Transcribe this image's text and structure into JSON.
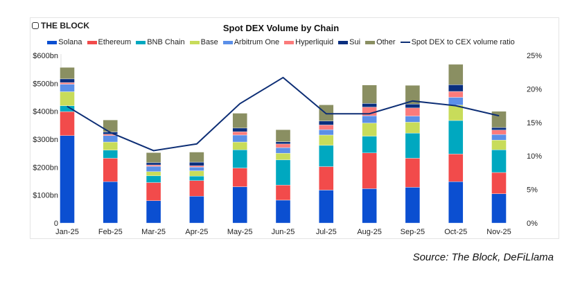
{
  "brand": "THE BLOCK",
  "source": "Source: The Block, DeFiLlama",
  "chart_data": {
    "type": "bar",
    "stacked": true,
    "title": "Spot DEX Volume by Chain",
    "categories": [
      "Jan-25",
      "Feb-25",
      "Mar-25",
      "Apr-25",
      "May-25",
      "Jun-25",
      "Jul-25",
      "Aug-25",
      "Sep-25",
      "Oct-25",
      "Nov-25"
    ],
    "y_left": {
      "ticks": [
        "0",
        "$100bn",
        "$200bn",
        "$300bn",
        "$400bn",
        "$500bn",
        "$600bn"
      ],
      "range": [
        0,
        600
      ],
      "unit": "bn USD"
    },
    "y_right": {
      "ticks": [
        "0%",
        "5%",
        "10%",
        "15%",
        "20%",
        "25%"
      ],
      "range": [
        0,
        25
      ],
      "unit": "%"
    },
    "legend_position": "top",
    "grid": false,
    "series": [
      {
        "name": "Solana",
        "color": "#0b4fd1",
        "values": [
          313,
          148,
          80,
          96,
          130,
          82,
          118,
          123,
          128,
          148,
          105
        ]
      },
      {
        "name": "Ethereum",
        "color": "#f24b4b",
        "values": [
          86,
          84,
          65,
          56,
          67,
          54,
          84,
          128,
          104,
          99,
          76
        ]
      },
      {
        "name": "BNB Chain",
        "color": "#00a8c0",
        "values": [
          21,
          29,
          24,
          16,
          65,
          90,
          76,
          60,
          90,
          120,
          81
        ]
      },
      {
        "name": "Base",
        "color": "#c8dc5a",
        "values": [
          50,
          29,
          15,
          19,
          28,
          24,
          37,
          47,
          39,
          55,
          35
        ]
      },
      {
        "name": "Arbitrum One",
        "color": "#5b8fe8",
        "values": [
          27,
          23,
          19,
          13,
          25,
          20,
          19,
          26,
          22,
          28,
          20
        ]
      },
      {
        "name": "Hyperliquid",
        "color": "#fb7b7b",
        "values": [
          6,
          5,
          5,
          5,
          12,
          13,
          17,
          31,
          29,
          21,
          16
        ]
      },
      {
        "name": "Sui",
        "color": "#0a2f7f",
        "values": [
          13,
          8,
          8,
          13,
          13,
          8,
          14,
          13,
          14,
          24,
          9
        ]
      },
      {
        "name": "Other",
        "color": "#8a8f62",
        "values": [
          41,
          43,
          36,
          36,
          53,
          43,
          58,
          66,
          67,
          73,
          58
        ]
      }
    ],
    "line_series": {
      "name": "Spot DEX to CEX volume ratio",
      "color": "#0d2e75",
      "axis": "right",
      "values": [
        17.4,
        13.5,
        10.8,
        11.8,
        17.8,
        21.7,
        16.3,
        16.3,
        18.2,
        17.5,
        16.0
      ]
    }
  }
}
